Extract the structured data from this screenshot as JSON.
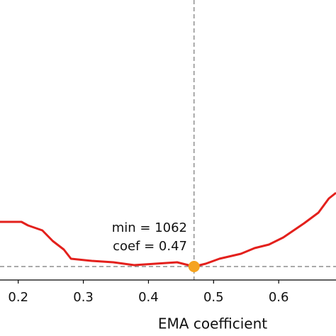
{
  "chart_data": {
    "type": "line",
    "x_label": "EMA coefficient",
    "x": [
      0.172,
      0.205,
      0.215,
      0.237,
      0.253,
      0.27,
      0.281,
      0.313,
      0.346,
      0.378,
      0.411,
      0.444,
      0.47,
      0.488,
      0.509,
      0.542,
      0.563,
      0.585,
      0.607,
      0.639,
      0.661,
      0.677,
      0.688
    ],
    "series": [
      {
        "color": "#e3201c",
        "values": [
          1125,
          1125,
          1120,
          1113,
          1098,
          1086,
          1073,
          1070,
          1068,
          1064,
          1066,
          1068,
          1062,
          1066,
          1073,
          1080,
          1088,
          1093,
          1103,
          1123,
          1138,
          1158,
          1166
        ]
      }
    ],
    "xlim": [
      0.172,
      0.688
    ],
    "xticks": [
      0.2,
      0.3,
      0.4,
      0.5,
      0.6
    ],
    "ylim": [
      1043,
      1438
    ],
    "min_point": {
      "x": 0.47,
      "y": 1062,
      "color": "#f5a31f"
    },
    "annotation": [
      "min = 1062",
      "coef = 0.47"
    ]
  }
}
